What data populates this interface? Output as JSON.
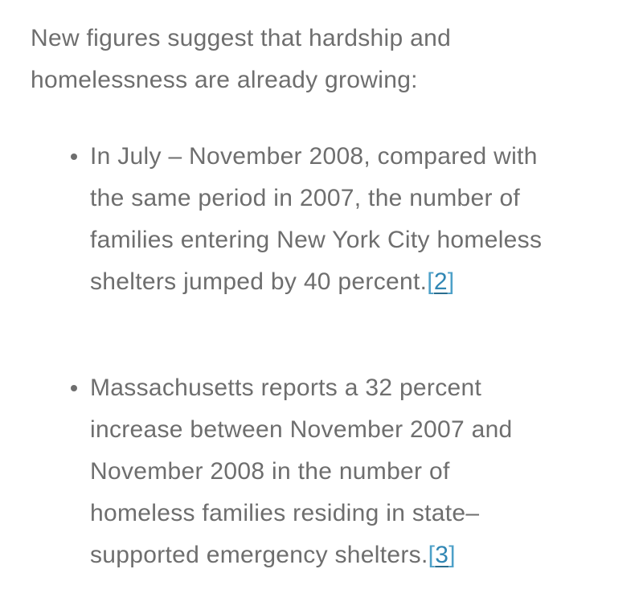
{
  "page": {
    "background": "#ffffff",
    "text_color": "#6e6e6e",
    "link_color": "#3187b4",
    "bracket_color": "#4da0c8"
  },
  "intro": {
    "lines": [
      "New figures suggest that hardship and",
      "homelessness are already growing:"
    ]
  },
  "bullets": [
    {
      "lines": [
        "In July – November 2008, compared with",
        "the same period in 2007, the number of",
        "families entering New York City homeless"
      ],
      "last_line_text": "shelters jumped by 40 percent.",
      "ref": {
        "open": "[",
        "label": "2",
        "close": "]"
      }
    },
    {
      "lines": [
        "Massachusetts reports a 32 percent",
        "increase between November 2007 and",
        "November 2008 in the number of",
        "homeless families residing in state–"
      ],
      "last_line_text": "supported emergency shelters.",
      "ref": {
        "open": "[",
        "label": "3",
        "close": "]"
      }
    }
  ]
}
